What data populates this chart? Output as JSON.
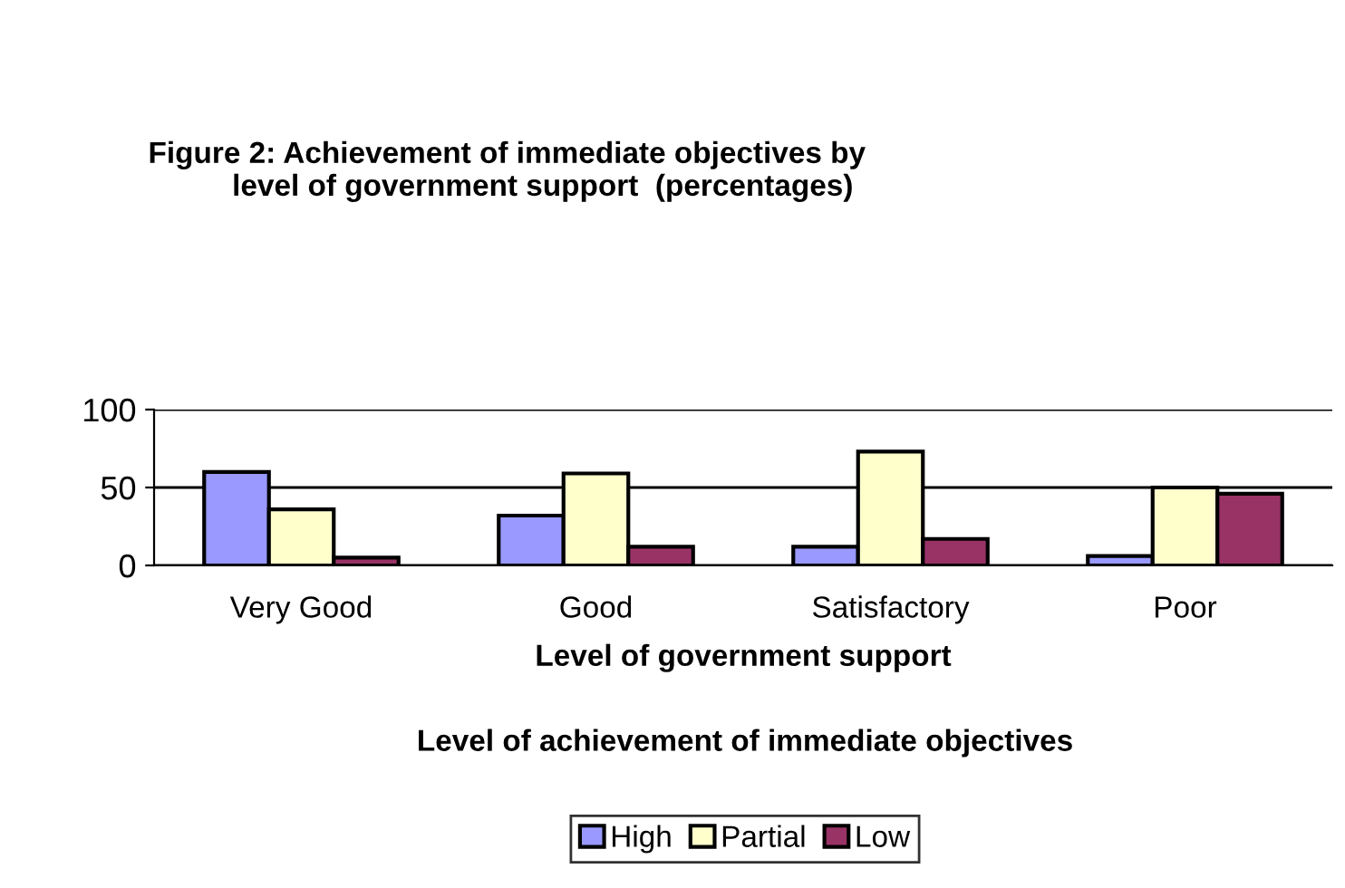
{
  "chart_data": {
    "type": "bar",
    "title": "Figure 2: Achievement of immediate objectives by\n          level of government support  (percentages)",
    "categories": [
      "Very Good",
      "Good",
      "Satisfactory",
      "Poor"
    ],
    "series": [
      {
        "name": "High",
        "color": "#9999ff",
        "values": [
          60,
          32,
          12,
          6
        ]
      },
      {
        "name": "Partial",
        "color": "#ffffcc",
        "values": [
          36,
          59,
          73,
          50
        ]
      },
      {
        "name": "Low",
        "color": "#993366",
        "values": [
          5,
          12,
          17,
          46
        ]
      }
    ],
    "xlabel": "Level of government support",
    "legend_title": "Level of achievement of immediate objectives",
    "ylim": [
      0,
      100
    ],
    "yticks": [
      0,
      50,
      100
    ],
    "grid": "y",
    "legend": "bottom"
  }
}
